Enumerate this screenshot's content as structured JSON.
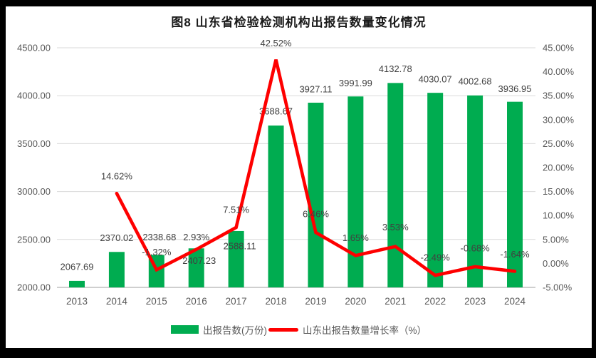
{
  "title": "图8  山东省检验检测机构出报告数量变化情况",
  "colors": {
    "bar": "#00AC50",
    "line": "#FE0000",
    "gridline": "#D9D9D9",
    "axis_line": "#BFBFBF",
    "axis_text": "#595959",
    "data_label_text": "#404040",
    "background": "#FFFFFF",
    "frame": "#000000"
  },
  "chart_data": {
    "type": "combo-bar-line",
    "title": "图8  山东省检验检测机构出报告数量变化情况",
    "categories": [
      "2013",
      "2014",
      "2015",
      "2016",
      "2017",
      "2018",
      "2019",
      "2020",
      "2021",
      "2022",
      "2023",
      "2024"
    ],
    "series": [
      {
        "name": "出报告数(万份)",
        "type": "bar",
        "axis": "left",
        "values": [
          2067.69,
          2370.02,
          2338.68,
          2407.23,
          2588.11,
          3688.67,
          3927.11,
          3991.99,
          4132.78,
          4030.07,
          4002.68,
          3936.95
        ],
        "labels": [
          "2067.69",
          "2370.02",
          "2338.68",
          "2407.23",
          "2588.11",
          "3688.67",
          "3927.11",
          "3991.99",
          "4132.78",
          "4030.07",
          "4002.68",
          "3936.95"
        ]
      },
      {
        "name": "山东出报告数量增长率（%）",
        "type": "line",
        "axis": "right",
        "values": [
          null,
          14.62,
          -1.32,
          2.93,
          7.51,
          42.52,
          6.46,
          1.65,
          3.53,
          -2.49,
          -0.68,
          -1.64
        ],
        "labels": [
          null,
          "14.62%",
          "-1.32%",
          "2.93%",
          "7.51%",
          "42.52%",
          "6.46%",
          "1.65%",
          "3.53%",
          "-2.49%",
          "-0.68%",
          "-1.64%"
        ]
      }
    ],
    "left_axis": {
      "min": 2000,
      "max": 4500,
      "step": 500,
      "ticks": [
        "4500.00",
        "4000.00",
        "3500.00",
        "3000.00",
        "2500.00",
        "2000.00"
      ]
    },
    "right_axis": {
      "min": -5,
      "max": 45,
      "step": 5,
      "ticks": [
        "45.00%",
        "40.00%",
        "35.00%",
        "30.00%",
        "25.00%",
        "20.00%",
        "15.00%",
        "10.00%",
        "5.00%",
        "0.00%",
        "-5.00%"
      ]
    },
    "grid": "horizontal",
    "legend_position": "bottom",
    "legend": [
      {
        "label": "出报告数(万份)",
        "swatch": "bar"
      },
      {
        "label": "山东出报告数量增长率（%）",
        "swatch": "line"
      }
    ]
  }
}
